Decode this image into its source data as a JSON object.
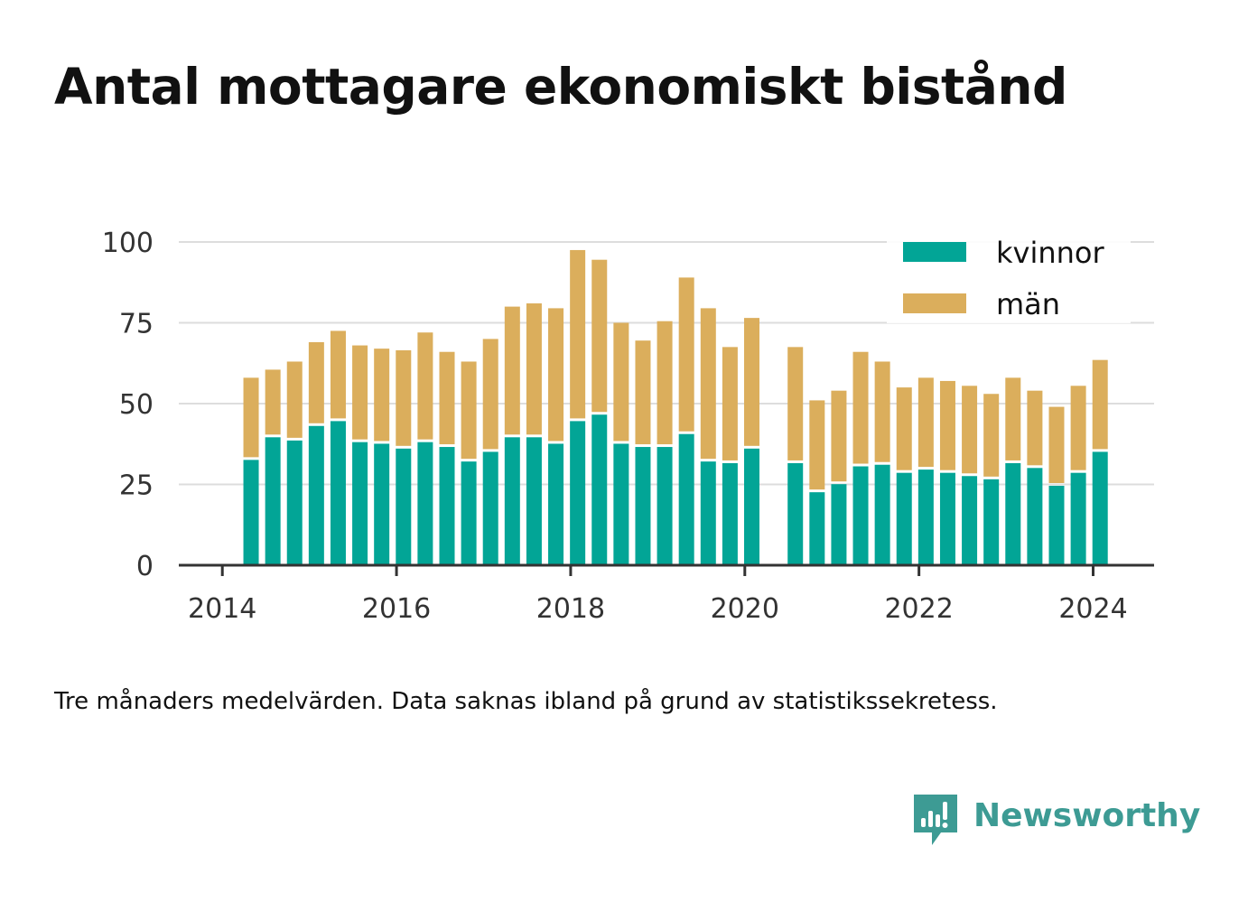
{
  "title": "Antal mottagare ekonomiskt bistånd",
  "note": "Tre månaders medelvärden. Data saknas ibland på grund av statistikssekretess.",
  "brand": {
    "name": "Newsworthy",
    "icon": "newsworthy-logo-icon",
    "color": "#3d9b94"
  },
  "colors": {
    "kvinnor": "#02a596",
    "man": "#dbae5c",
    "grid": "#dddddd",
    "axis": "#333333",
    "text": "#333333"
  },
  "chart_data": {
    "type": "bar",
    "stacked": true,
    "x_ticks": [
      2014,
      2016,
      2018,
      2020,
      2022,
      2024
    ],
    "y_ticks": [
      0,
      25,
      50,
      75,
      100
    ],
    "ylim": [
      0,
      100
    ],
    "xlim": [
      2013.5,
      2024.7
    ],
    "grid": true,
    "legend_position": "top-right",
    "x": [
      2014.33,
      2014.58,
      2014.83,
      2015.08,
      2015.33,
      2015.58,
      2015.83,
      2016.08,
      2016.33,
      2016.58,
      2016.83,
      2017.08,
      2017.33,
      2017.58,
      2017.83,
      2018.08,
      2018.33,
      2018.58,
      2018.83,
      2019.08,
      2019.33,
      2019.58,
      2019.83,
      2020.08,
      2020.58,
      2020.83,
      2021.08,
      2021.33,
      2021.58,
      2021.83,
      2022.08,
      2022.33,
      2022.58,
      2022.83,
      2023.08,
      2023.33,
      2023.58,
      2023.83,
      2024.08
    ],
    "series": [
      {
        "name": "kvinnor",
        "color": "#02a596",
        "values": [
          33,
          40,
          39,
          43.5,
          45,
          38.5,
          38,
          36.5,
          38.5,
          37,
          32.5,
          35.5,
          40,
          40,
          38,
          45,
          47,
          38,
          37,
          37,
          41,
          32.5,
          32,
          36.5,
          32,
          23,
          25.5,
          31,
          31.5,
          29,
          30,
          29,
          28,
          27,
          32,
          30.5,
          25,
          29,
          35.5
        ]
      },
      {
        "name": "män",
        "color": "#dbae5c",
        "values": [
          25,
          20.5,
          24,
          25.5,
          27.5,
          29.5,
          29,
          30,
          33.5,
          29,
          30.5,
          34.5,
          40,
          41,
          41.5,
          52.5,
          47.5,
          37,
          32.5,
          38.5,
          48,
          47,
          35.5,
          40,
          35.5,
          28,
          28.5,
          35,
          31.5,
          26,
          28,
          28,
          27.5,
          26,
          26,
          23.5,
          24,
          26.5,
          28
        ]
      }
    ]
  }
}
